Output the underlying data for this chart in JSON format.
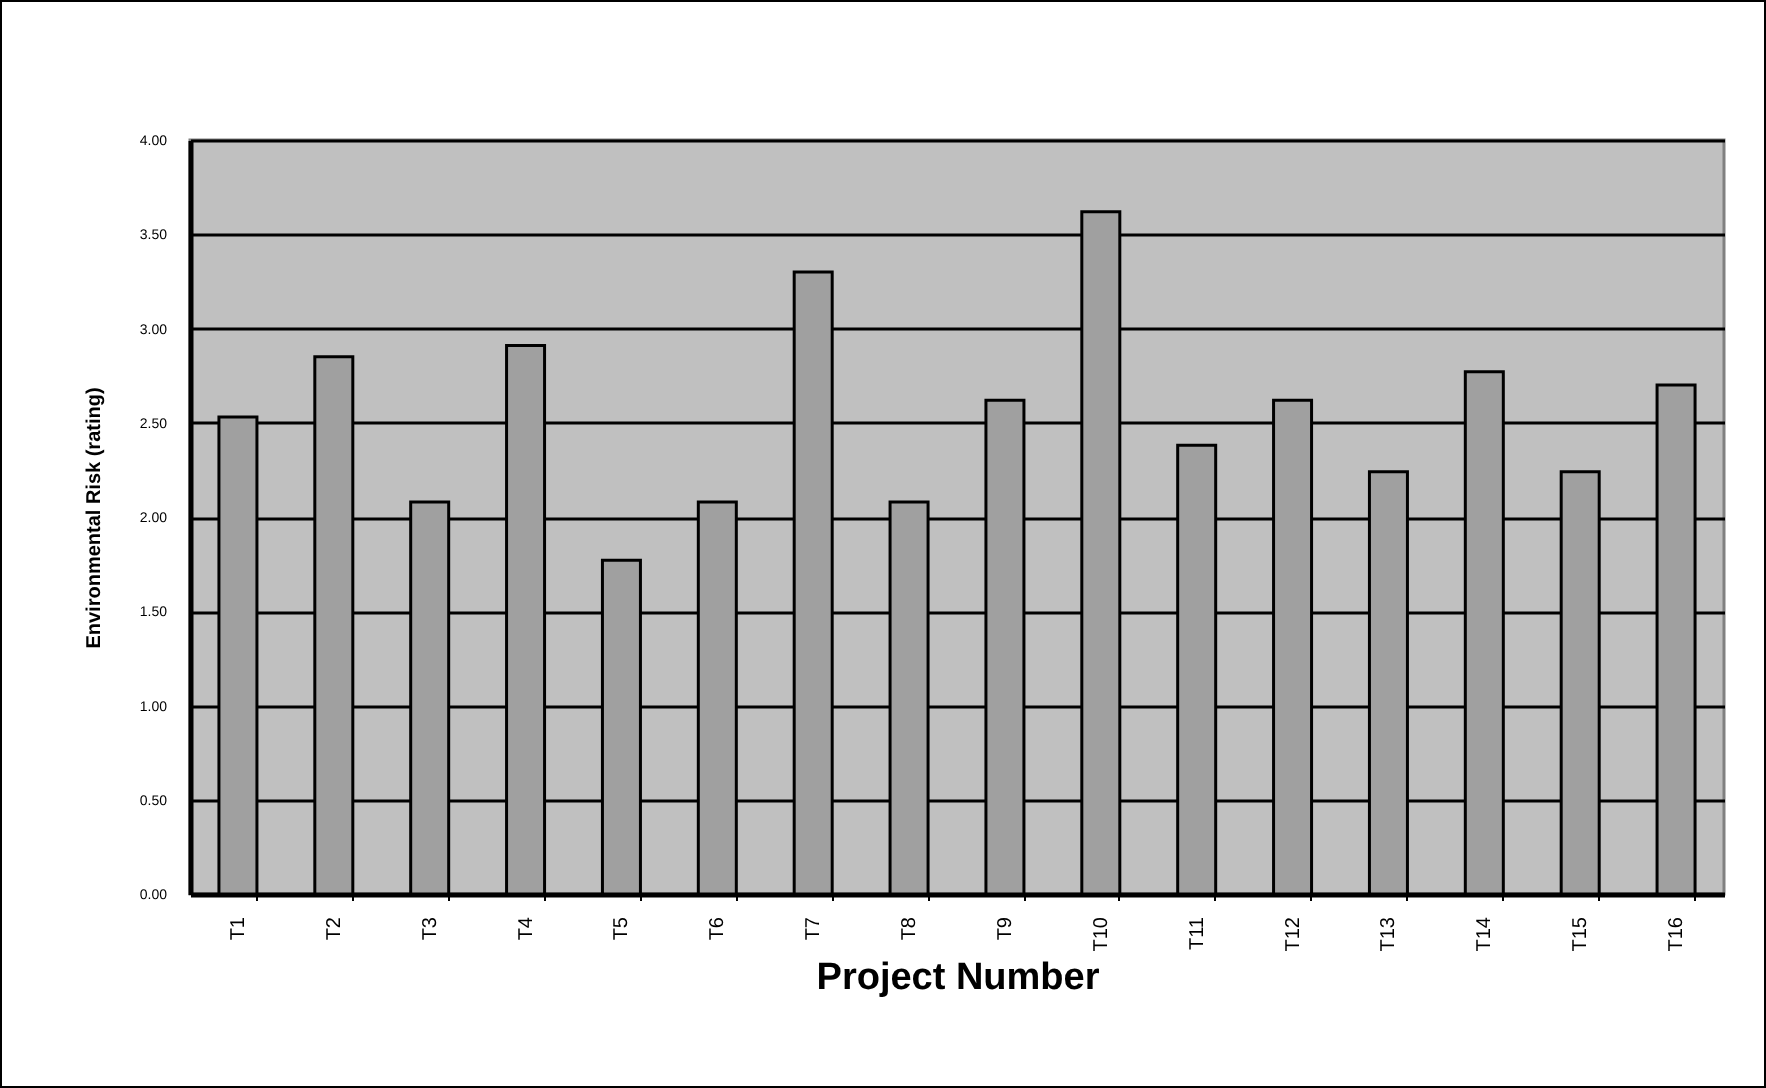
{
  "chart_data": {
    "type": "bar",
    "xlabel": "Project Number",
    "ylabel": "Environmental  Risk  (rating)",
    "categories": [
      "T1",
      "T2",
      "T3",
      "T4",
      "T5",
      "T6",
      "T7",
      "T8",
      "T9",
      "T10",
      "T11",
      "T12",
      "T13",
      "T14",
      "T15",
      "T16"
    ],
    "values": [
      2.53,
      2.85,
      2.08,
      2.91,
      1.77,
      2.08,
      3.3,
      2.08,
      2.62,
      3.62,
      2.38,
      2.62,
      2.24,
      2.77,
      2.24,
      2.7
    ],
    "color": "#a0a0a0",
    "ylim": [
      0,
      4
    ],
    "yticks": [
      {
        "value": 0,
        "label": "0.00"
      },
      {
        "value": 0.5,
        "label": "0.50"
      },
      {
        "value": 1,
        "label": "1.00"
      },
      {
        "value": 1.5,
        "label": "1.50"
      },
      {
        "value": 2,
        "label": "2.00"
      },
      {
        "value": 2.5,
        "label": "2.50"
      },
      {
        "value": 3,
        "label": "3.00"
      },
      {
        "value": 3.5,
        "label": "3.50"
      },
      {
        "value": 4,
        "label": "4.00"
      }
    ],
    "grid": "y"
  }
}
